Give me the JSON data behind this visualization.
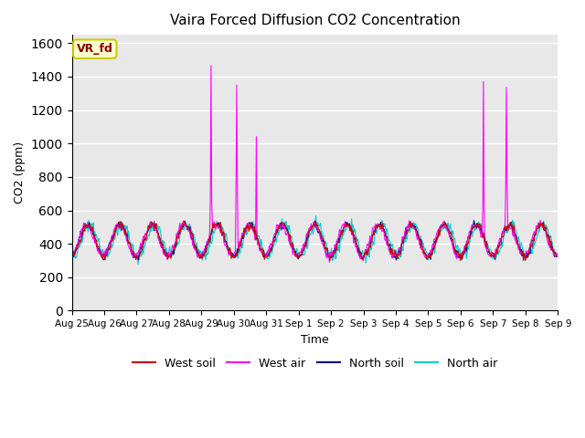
{
  "title": "Vaira Forced Diffusion CO2 Concentration",
  "xlabel": "Time",
  "ylabel": "CO2 (ppm)",
  "ylim": [
    0,
    1650
  ],
  "yticks": [
    0,
    200,
    400,
    600,
    800,
    1000,
    1200,
    1400,
    1600
  ],
  "x_labels": [
    "Aug 25",
    "Aug 26",
    "Aug 27",
    "Aug 28",
    "Aug 29",
    "Aug 30",
    "Aug 31",
    "Sep 1",
    "Sep 2",
    "Sep 3",
    "Sep 4",
    "Sep 5",
    "Sep 6",
    "Sep 7",
    "Sep 8",
    "Sep 9"
  ],
  "colors": {
    "west_soil": "#cc0000",
    "west_air": "#ff00ff",
    "north_soil": "#000088",
    "north_air": "#00cccc"
  },
  "legend_label_box_color": "#ffffcc",
  "legend_label_box_edge": "#cccc00",
  "legend_label_text_color": "#880000",
  "legend_label_text": "VR_fd",
  "background_color": "#e8e8e8",
  "grid_color": "#ffffff"
}
